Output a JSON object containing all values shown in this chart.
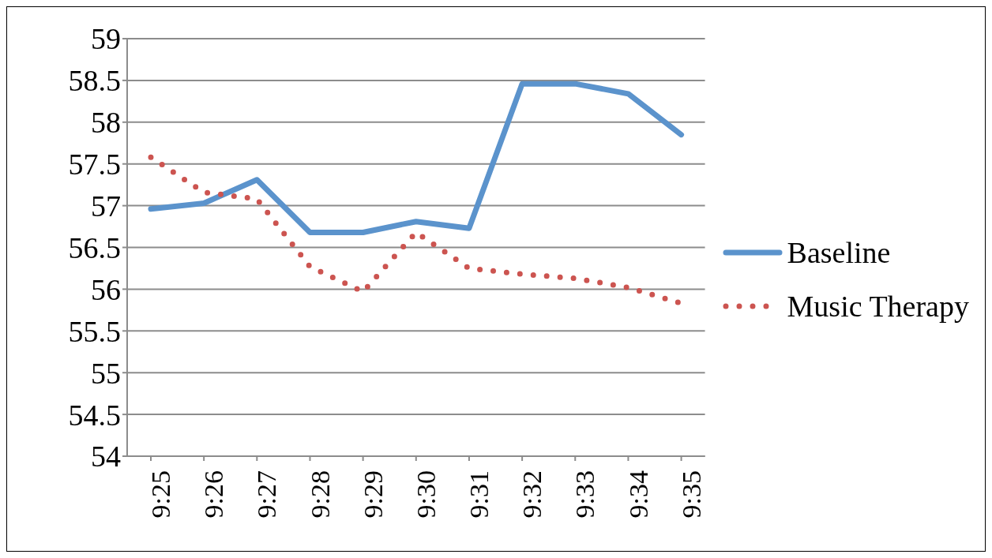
{
  "chart_data": {
    "type": "line",
    "categories": [
      "9:25",
      "9:26",
      "9:27",
      "9:28",
      "9:29",
      "9:30",
      "9:31",
      "9:32",
      "9:33",
      "9:34",
      "9:35"
    ],
    "series": [
      {
        "name": "Baseline",
        "color": "#5b93cc",
        "line_style": "solid",
        "values": [
          56.96,
          57.03,
          57.31,
          56.68,
          56.68,
          56.81,
          56.73,
          58.46,
          58.46,
          58.34,
          57.85
        ]
      },
      {
        "name": "Music Therapy",
        "color": "#cc5450",
        "line_style": "dotted",
        "values": [
          57.58,
          57.16,
          57.08,
          56.27,
          55.97,
          56.68,
          56.25,
          56.18,
          56.13,
          56.02,
          55.83
        ]
      }
    ],
    "ylim": [
      54,
      59
    ],
    "yticks": [
      54,
      54.5,
      55,
      55.5,
      56,
      56.5,
      57,
      57.5,
      58,
      58.5,
      59
    ],
    "grid": "y",
    "legend": "right",
    "marker": "none"
  }
}
